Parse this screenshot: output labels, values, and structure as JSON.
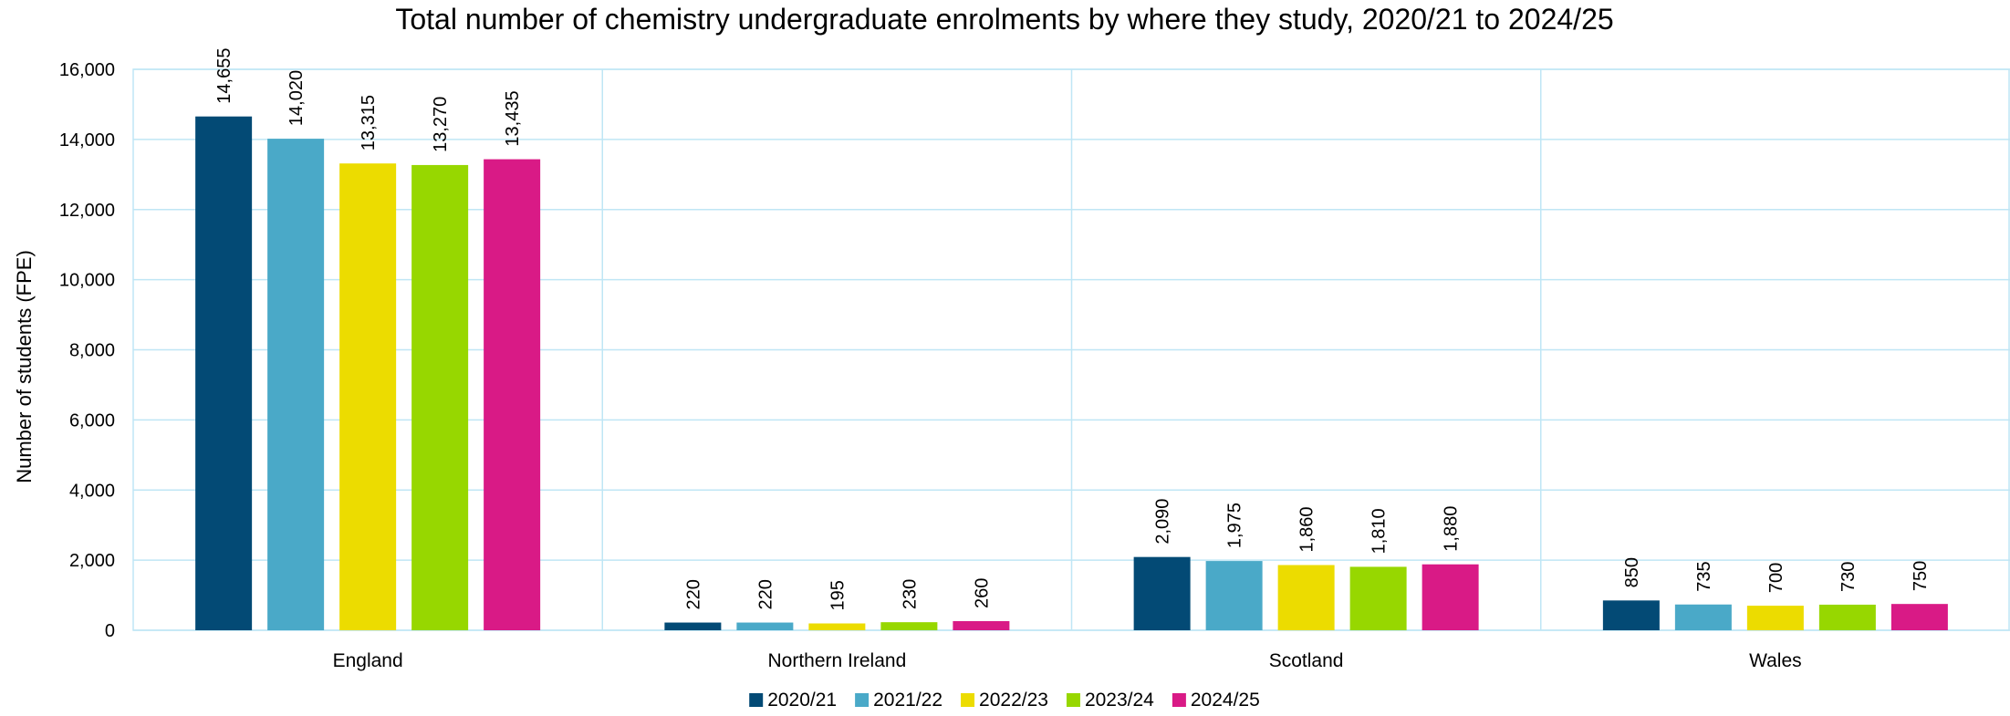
{
  "chart_data": {
    "type": "bar",
    "title": "Total number of chemistry undergraduate enrolments by where they study, 2020/21 to 2024/25",
    "xlabel": "",
    "ylabel": "Number of students (FPE)",
    "ylim": [
      0,
      16000
    ],
    "yticks": [
      "0",
      "2,000",
      "4,000",
      "6,000",
      "8,000",
      "10,000",
      "12,000",
      "14,000",
      "16,000"
    ],
    "categories": [
      "England",
      "Northern Ireland",
      "Scotland",
      "Wales"
    ],
    "series": [
      {
        "name": "2020/21",
        "color": "#034a75",
        "values": [
          14655,
          220,
          2090,
          850
        ],
        "labels": [
          "14,655",
          "220",
          "2,090",
          "850"
        ]
      },
      {
        "name": "2021/22",
        "color": "#4aa9c8",
        "values": [
          14020,
          220,
          1975,
          735
        ],
        "labels": [
          "14,020",
          "220",
          "1,975",
          "735"
        ]
      },
      {
        "name": "2022/23",
        "color": "#ecdc00",
        "values": [
          13315,
          195,
          1860,
          700
        ],
        "labels": [
          "13,315",
          "195",
          "1,860",
          "700"
        ]
      },
      {
        "name": "2023/24",
        "color": "#97d700",
        "values": [
          13270,
          230,
          1810,
          730
        ],
        "labels": [
          "13,270",
          "230",
          "1,810",
          "730"
        ]
      },
      {
        "name": "2024/25",
        "color": "#d91a86",
        "values": [
          13435,
          260,
          1880,
          750
        ],
        "labels": [
          "13,435",
          "260",
          "1,880",
          "750"
        ]
      }
    ],
    "grid": true,
    "legend_position": "bottom-center"
  }
}
